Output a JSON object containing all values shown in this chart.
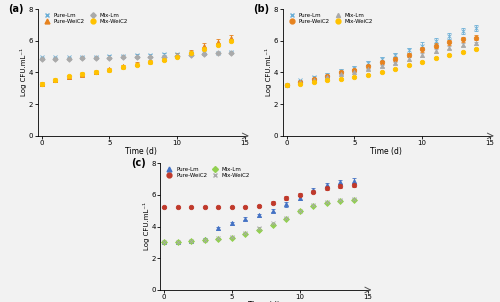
{
  "time": [
    0,
    1,
    2,
    3,
    4,
    5,
    6,
    7,
    8,
    9,
    10,
    11,
    12,
    13,
    14
  ],
  "a_pure_lm": [
    4.95,
    4.95,
    4.95,
    5.0,
    5.0,
    5.05,
    5.05,
    5.1,
    5.1,
    5.15,
    5.15,
    5.2,
    5.2,
    5.25,
    5.3
  ],
  "a_pure_wei": [
    3.3,
    3.5,
    3.7,
    3.85,
    4.0,
    4.2,
    4.4,
    4.55,
    4.7,
    4.85,
    5.1,
    5.3,
    5.7,
    5.95,
    6.2
  ],
  "a_mix_lm": [
    4.85,
    4.85,
    4.85,
    4.9,
    4.9,
    4.9,
    4.95,
    4.95,
    5.0,
    5.0,
    5.05,
    5.1,
    5.15,
    5.2,
    5.25
  ],
  "a_mix_wei": [
    3.3,
    3.55,
    3.75,
    3.9,
    4.05,
    4.15,
    4.35,
    4.5,
    4.65,
    4.8,
    5.0,
    5.2,
    5.5,
    5.75,
    6.0
  ],
  "a_pure_lm_err": [
    0.05,
    0.05,
    0.05,
    0.05,
    0.05,
    0.05,
    0.05,
    0.05,
    0.05,
    0.05,
    0.05,
    0.05,
    0.05,
    0.05,
    0.05
  ],
  "a_pure_wei_err": [
    0.1,
    0.1,
    0.1,
    0.1,
    0.1,
    0.1,
    0.1,
    0.1,
    0.1,
    0.1,
    0.1,
    0.1,
    0.15,
    0.15,
    0.15
  ],
  "a_mix_lm_err": [
    0.05,
    0.05,
    0.05,
    0.05,
    0.05,
    0.05,
    0.05,
    0.05,
    0.05,
    0.05,
    0.05,
    0.05,
    0.05,
    0.05,
    0.05
  ],
  "a_mix_wei_err": [
    0.1,
    0.1,
    0.1,
    0.1,
    0.1,
    0.1,
    0.1,
    0.1,
    0.1,
    0.1,
    0.1,
    0.1,
    0.1,
    0.1,
    0.1
  ],
  "b_pure_lm": [
    3.2,
    3.5,
    3.7,
    3.85,
    4.1,
    4.3,
    4.6,
    4.85,
    5.1,
    5.4,
    5.7,
    6.0,
    6.3,
    6.6,
    6.8
  ],
  "b_pure_wei": [
    3.2,
    3.4,
    3.6,
    3.75,
    4.0,
    4.15,
    4.4,
    4.65,
    4.85,
    5.1,
    5.45,
    5.7,
    5.9,
    6.1,
    6.2
  ],
  "b_mix_lm": [
    3.2,
    3.4,
    3.55,
    3.7,
    3.9,
    4.05,
    4.2,
    4.4,
    4.6,
    4.85,
    5.1,
    5.35,
    5.55,
    5.75,
    5.85
  ],
  "b_mix_wei": [
    3.2,
    3.3,
    3.4,
    3.5,
    3.6,
    3.7,
    3.85,
    4.0,
    4.2,
    4.45,
    4.65,
    4.9,
    5.1,
    5.3,
    5.5
  ],
  "b_pure_lm_err": [
    0.05,
    0.05,
    0.1,
    0.1,
    0.1,
    0.1,
    0.15,
    0.15,
    0.15,
    0.15,
    0.2,
    0.2,
    0.2,
    0.2,
    0.2
  ],
  "b_pure_wei_err": [
    0.05,
    0.05,
    0.05,
    0.1,
    0.1,
    0.1,
    0.1,
    0.1,
    0.1,
    0.1,
    0.15,
    0.15,
    0.15,
    0.15,
    0.15
  ],
  "b_mix_lm_err": [
    0.05,
    0.05,
    0.05,
    0.05,
    0.05,
    0.05,
    0.05,
    0.05,
    0.05,
    0.1,
    0.1,
    0.1,
    0.1,
    0.1,
    0.1
  ],
  "b_mix_wei_err": [
    0.05,
    0.05,
    0.05,
    0.05,
    0.05,
    0.05,
    0.05,
    0.05,
    0.05,
    0.05,
    0.05,
    0.05,
    0.05,
    0.05,
    0.05
  ],
  "c_pure_lm": [
    3.0,
    3.05,
    3.1,
    3.2,
    3.9,
    4.2,
    4.5,
    4.7,
    5.0,
    5.4,
    5.8,
    6.3,
    6.6,
    6.8,
    6.9
  ],
  "c_pure_wei": [
    5.2,
    5.2,
    5.2,
    5.2,
    5.2,
    5.2,
    5.25,
    5.3,
    5.5,
    5.8,
    6.0,
    6.2,
    6.4,
    6.55,
    6.6
  ],
  "c_mix_lm": [
    3.0,
    3.05,
    3.1,
    3.15,
    3.2,
    3.3,
    3.5,
    3.75,
    4.1,
    4.5,
    4.95,
    5.3,
    5.5,
    5.6,
    5.65
  ],
  "c_mix_wei": [
    3.0,
    3.05,
    3.1,
    3.15,
    3.25,
    3.35,
    3.6,
    3.9,
    4.2,
    4.55,
    5.0,
    5.35,
    5.55,
    5.7,
    5.75
  ],
  "c_pure_lm_err": [
    0.05,
    0.05,
    0.05,
    0.05,
    0.1,
    0.1,
    0.1,
    0.1,
    0.1,
    0.15,
    0.15,
    0.15,
    0.15,
    0.15,
    0.15
  ],
  "c_pure_wei_err": [
    0.05,
    0.05,
    0.05,
    0.05,
    0.05,
    0.05,
    0.05,
    0.05,
    0.1,
    0.1,
    0.1,
    0.1,
    0.1,
    0.1,
    0.1
  ],
  "c_mix_lm_err": [
    0.05,
    0.05,
    0.05,
    0.05,
    0.05,
    0.05,
    0.05,
    0.05,
    0.05,
    0.05,
    0.05,
    0.05,
    0.05,
    0.05,
    0.05
  ],
  "c_mix_wei_err": [
    0.05,
    0.05,
    0.05,
    0.05,
    0.05,
    0.05,
    0.05,
    0.05,
    0.05,
    0.05,
    0.05,
    0.05,
    0.05,
    0.05,
    0.05
  ],
  "col_lm_ab": "#6BAED6",
  "col_wei_ab": "#E6821E",
  "col_mlm_a": "#AAAAAA",
  "col_mw_ab": "#FFC200",
  "col_mlm_b": "#AAAAAA",
  "col_lm_c": "#4472C4",
  "col_wei_c": "#C0392B",
  "col_mlm_c": "#92D050",
  "col_mw_c": "#AAAAAA",
  "ylabel": "Log CFU.mL⁻¹",
  "xlabel": "Time (d)",
  "ylim": [
    0,
    8
  ],
  "xlim": [
    -0.3,
    15
  ],
  "yticks": [
    0,
    2,
    4,
    6,
    8
  ],
  "xticks": [
    0,
    5,
    10,
    15
  ]
}
